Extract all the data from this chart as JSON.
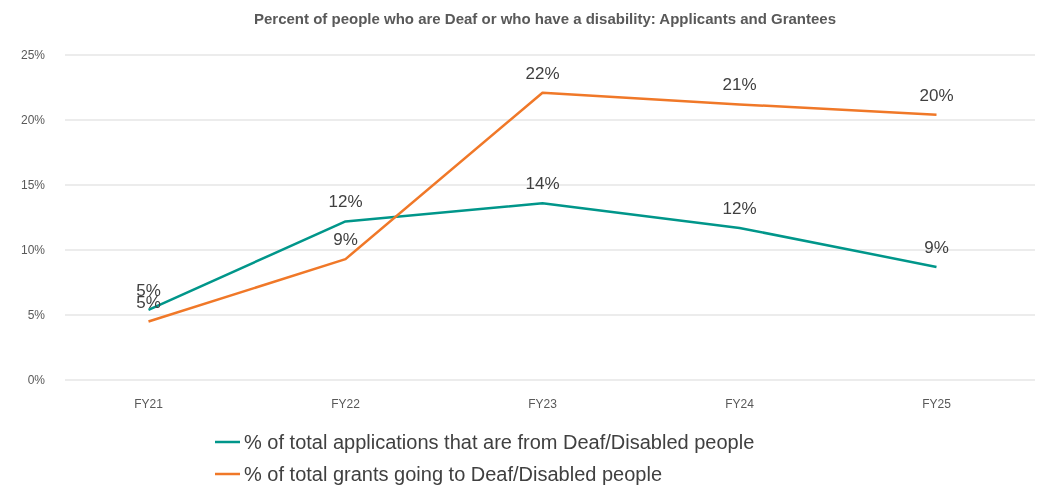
{
  "chart_data": {
    "type": "line",
    "title": "Percent of people who are Deaf or who have a disability: Applicants and Grantees",
    "categories": [
      "FY21",
      "FY22",
      "FY23",
      "FY24",
      "FY25"
    ],
    "series": [
      {
        "name": "% of total applications that are from Deaf/Disabled people",
        "color": "#00968a",
        "values": [
          5.4,
          12.2,
          13.6,
          11.7,
          8.7
        ],
        "value_labels": [
          "5%",
          "12%",
          "14%",
          "12%",
          "9%"
        ]
      },
      {
        "name": "% of total grants going to Deaf/Disabled people",
        "color": "#f07828",
        "values": [
          4.5,
          9.3,
          22.1,
          21.2,
          20.4
        ],
        "value_labels": [
          "5%",
          "9%",
          "22%",
          "21%",
          "20%"
        ]
      }
    ],
    "ylim": [
      0,
      25
    ],
    "yticks": [
      {
        "value": 0,
        "label": "0%"
      },
      {
        "value": 5,
        "label": "5%"
      },
      {
        "value": 10,
        "label": "10%"
      },
      {
        "value": 15,
        "label": "15%"
      },
      {
        "value": 20,
        "label": "20%"
      },
      {
        "value": 25,
        "label": "25%"
      }
    ],
    "grid": "y",
    "legend": "bottom",
    "marker": "none",
    "line_style": "solid"
  }
}
